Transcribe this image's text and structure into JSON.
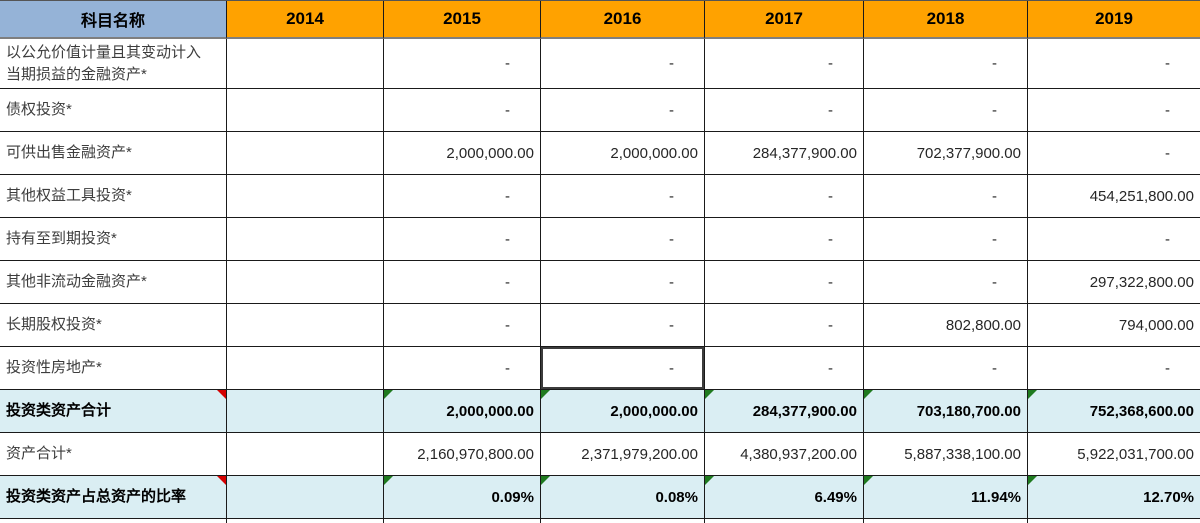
{
  "colors": {
    "year_header_orange": "#FFA200",
    "subject_header_blue": "#95B3D7",
    "summary_row_aqua": "#DAEEF3",
    "comment_marker_red": "#D40000",
    "formula_marker_green": "#1F7A1F"
  },
  "table": {
    "header": {
      "subject_col": "科目名称",
      "years": [
        "2014",
        "2015",
        "2016",
        "2017",
        "2018",
        "2019"
      ]
    },
    "rows": [
      {
        "label": "以公允价值计量且其变动计入\n当期损益的金融资产*",
        "type": "data",
        "values": [
          "",
          "-",
          "-",
          "-",
          "-",
          "-"
        ]
      },
      {
        "label": "债权投资*",
        "type": "data",
        "values": [
          "",
          "-",
          "-",
          "-",
          "-",
          "-"
        ]
      },
      {
        "label": "可供出售金融资产*",
        "type": "data",
        "values": [
          "",
          "2,000,000.00",
          "2,000,000.00",
          "284,377,900.00",
          "702,377,900.00",
          "-"
        ]
      },
      {
        "label": "其他权益工具投资*",
        "type": "data",
        "values": [
          "",
          "-",
          "-",
          "-",
          "-",
          "454,251,800.00"
        ]
      },
      {
        "label": "持有至到期投资*",
        "type": "data",
        "values": [
          "",
          "-",
          "-",
          "-",
          "-",
          "-"
        ]
      },
      {
        "label": "其他非流动金融资产*",
        "type": "data",
        "values": [
          "",
          "-",
          "-",
          "-",
          "-",
          "297,322,800.00"
        ]
      },
      {
        "label": "长期股权投资*",
        "type": "data",
        "values": [
          "",
          "-",
          "-",
          "-",
          "802,800.00",
          "794,000.00"
        ]
      },
      {
        "label": "投资性房地产*",
        "type": "data",
        "values": [
          "",
          "-",
          "-",
          "-",
          "-",
          "-"
        ]
      },
      {
        "label": "投资类资产合计",
        "type": "summary",
        "red_label_marker": true,
        "green_markers": [
          1,
          2,
          3,
          4,
          5
        ],
        "values": [
          "",
          "2,000,000.00",
          "2,000,000.00",
          "284,377,900.00",
          "703,180,700.00",
          "752,368,600.00"
        ]
      },
      {
        "label": "资产合计*",
        "type": "data",
        "values": [
          "",
          "2,160,970,800.00",
          "2,371,979,200.00",
          "4,380,937,200.00",
          "5,887,338,100.00",
          "5,922,031,700.00"
        ]
      },
      {
        "label": "投资类资产占总资产的比率",
        "type": "summary",
        "red_label_marker": true,
        "green_markers": [
          1,
          2,
          3,
          4,
          5
        ],
        "values": [
          "",
          "0.09%",
          "0.08%",
          "6.49%",
          "11.94%",
          "12.70%"
        ]
      }
    ],
    "selection": {
      "row_label": "投资性房地产*",
      "column": "2016",
      "row_index": 7,
      "year_index": 2,
      "value": "-"
    }
  }
}
